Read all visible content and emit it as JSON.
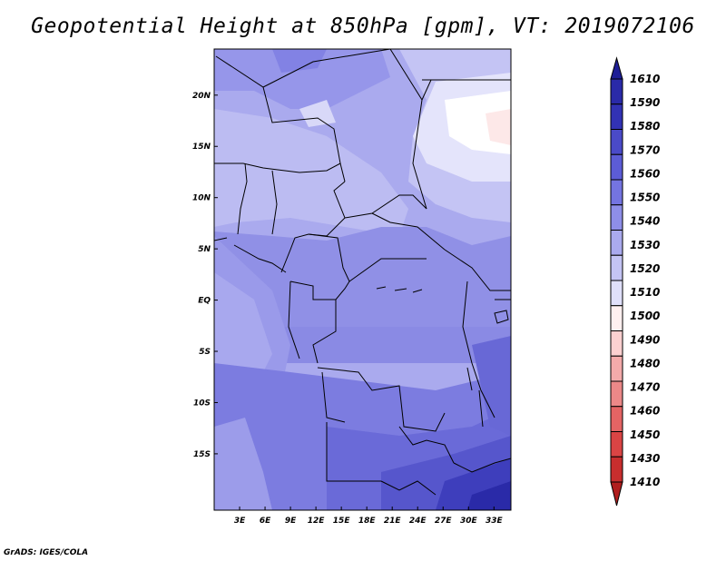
{
  "title": "Geopotential Height at 850hPa [gpm], VT: 2019072106",
  "credit": "GrADS: IGES/COLA",
  "map": {
    "lat_labels": [
      "20N",
      "15N",
      "10N",
      "5N",
      "EQ",
      "5S",
      "10S",
      "15S"
    ],
    "lon_labels": [
      "3E",
      "6E",
      "9E",
      "12E",
      "15E",
      "18E",
      "21E",
      "24E",
      "27E",
      "30E",
      "33E"
    ],
    "lat_range": [
      -20.5,
      24.5
    ],
    "lon_range": [
      0,
      35
    ]
  },
  "colorbar": {
    "levels": [
      "1610",
      "1590",
      "1580",
      "1570",
      "1560",
      "1550",
      "1540",
      "1530",
      "1520",
      "1510",
      "1500",
      "1490",
      "1480",
      "1470",
      "1460",
      "1450",
      "1430",
      "1410"
    ],
    "colors": [
      "#1e1e96",
      "#2a2aa8",
      "#3232b4",
      "#4a4ac8",
      "#5c5cd6",
      "#7474e0",
      "#8e8ee8",
      "#aaaaee",
      "#c4c4f4",
      "#e0e0fa",
      "#fff0f0",
      "#fcd0d0",
      "#f4aaaa",
      "#ec8888",
      "#e46464",
      "#da4444",
      "#c82e2e",
      "#b01e1e"
    ]
  }
}
